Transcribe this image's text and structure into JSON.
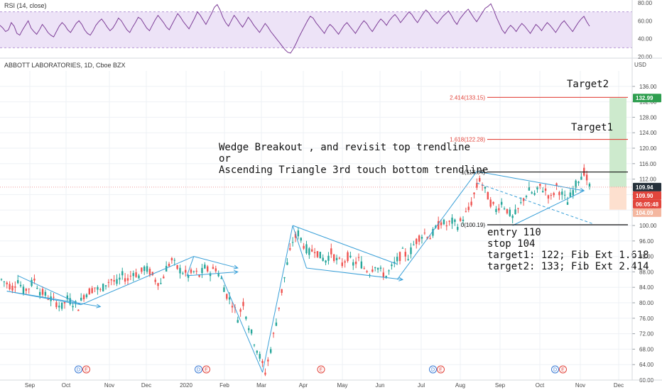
{
  "chart_data": [
    {
      "type": "line",
      "name": "rsi-panel",
      "title": "RSI (14, close)",
      "y_ticks": [
        "80.00",
        "60.00",
        "40.00",
        "20.00"
      ],
      "ylim": [
        20,
        80
      ],
      "band": [
        30,
        70
      ],
      "values": [
        55,
        52,
        48,
        50,
        58,
        54,
        46,
        44,
        50,
        55,
        60,
        52,
        48,
        45,
        50,
        56,
        52,
        47,
        44,
        42,
        48,
        54,
        58,
        55,
        50,
        47,
        52,
        57,
        60,
        56,
        50,
        46,
        44,
        49,
        55,
        59,
        62,
        58,
        53,
        49,
        52,
        57,
        63,
        60,
        55,
        50,
        47,
        53,
        58,
        64,
        62,
        57,
        52,
        49,
        55,
        61,
        66,
        62,
        58,
        53,
        50,
        56,
        62,
        68,
        64,
        59,
        55,
        51,
        57,
        63,
        70,
        66,
        61,
        56,
        62,
        68,
        75,
        78,
        72,
        64,
        58,
        54,
        60,
        66,
        62,
        57,
        53,
        58,
        64,
        60,
        55,
        51,
        47,
        52,
        57,
        53,
        48,
        44,
        40,
        36,
        32,
        28,
        25,
        24,
        29,
        35,
        42,
        48,
        54,
        60,
        65,
        63,
        58,
        54,
        50,
        46,
        52,
        56,
        53,
        49,
        45,
        50,
        55,
        58,
        54,
        50,
        46,
        51,
        56,
        60,
        57,
        52,
        48,
        53,
        58,
        62,
        59,
        55,
        60,
        64,
        67,
        63,
        58,
        62,
        66,
        70,
        67,
        62,
        58,
        63,
        68,
        72,
        69,
        64,
        60,
        57,
        61,
        65,
        68,
        71,
        66,
        60,
        56,
        62,
        66,
        70,
        73,
        68,
        63,
        59,
        64,
        69,
        74,
        76,
        79,
        72,
        64,
        57,
        50,
        46,
        51,
        55,
        52,
        48,
        53,
        57,
        54,
        50,
        46,
        51,
        56,
        53,
        49,
        54,
        58,
        55,
        51,
        47,
        52,
        57,
        60,
        56,
        52,
        48,
        53,
        58,
        62,
        65,
        59,
        54
      ]
    },
    {
      "type": "candlestick",
      "name": "price-panel",
      "title": "ABBOTT LABORATORIES, 1D, Cboe BZX",
      "currency": "USD",
      "ylim": [
        60,
        140
      ],
      "y_ticks": [
        "136.00",
        "132.00",
        "128.00",
        "124.00",
        "120.00",
        "116.00",
        "112.00",
        "108.00",
        "104.00",
        "100.00",
        "96.00",
        "92.00",
        "88.00",
        "84.00",
        "80.00",
        "76.00",
        "72.00",
        "68.00",
        "64.00",
        "60.00"
      ],
      "x_labels": [
        "Sep",
        "Oct",
        "Nov",
        "Dec",
        "2020",
        "Feb",
        "Mar",
        "Apr",
        "May",
        "Jun",
        "Jul",
        "Aug",
        "Sep",
        "Oct",
        "Nov",
        "Dec"
      ],
      "close_path": [
        {
          "x": 0,
          "y": 86
        },
        {
          "x": 4,
          "y": 85
        },
        {
          "x": 8,
          "y": 84
        },
        {
          "x": 12,
          "y": 86
        },
        {
          "x": 16,
          "y": 83
        },
        {
          "x": 20,
          "y": 84
        },
        {
          "x": 24,
          "y": 86
        },
        {
          "x": 28,
          "y": 83
        },
        {
          "x": 32,
          "y": 82
        },
        {
          "x": 36,
          "y": 81
        },
        {
          "x": 40,
          "y": 80
        },
        {
          "x": 44,
          "y": 79
        },
        {
          "x": 48,
          "y": 81
        },
        {
          "x": 52,
          "y": 80
        },
        {
          "x": 56,
          "y": 79
        },
        {
          "x": 60,
          "y": 82
        },
        {
          "x": 64,
          "y": 83
        },
        {
          "x": 68,
          "y": 84
        },
        {
          "x": 72,
          "y": 83
        },
        {
          "x": 76,
          "y": 85
        },
        {
          "x": 80,
          "y": 86
        },
        {
          "x": 84,
          "y": 85
        },
        {
          "x": 88,
          "y": 87
        },
        {
          "x": 92,
          "y": 86
        },
        {
          "x": 96,
          "y": 88
        },
        {
          "x": 100,
          "y": 87
        },
        {
          "x": 104,
          "y": 89
        },
        {
          "x": 108,
          "y": 88
        },
        {
          "x": 112,
          "y": 86
        },
        {
          "x": 116,
          "y": 85
        },
        {
          "x": 120,
          "y": 89
        },
        {
          "x": 124,
          "y": 91
        },
        {
          "x": 128,
          "y": 89
        },
        {
          "x": 132,
          "y": 88
        },
        {
          "x": 136,
          "y": 87
        },
        {
          "x": 140,
          "y": 88
        },
        {
          "x": 144,
          "y": 87
        },
        {
          "x": 148,
          "y": 89
        },
        {
          "x": 152,
          "y": 88
        },
        {
          "x": 156,
          "y": 89
        },
        {
          "x": 160,
          "y": 86
        },
        {
          "x": 164,
          "y": 82
        },
        {
          "x": 168,
          "y": 80
        },
        {
          "x": 172,
          "y": 76
        },
        {
          "x": 176,
          "y": 80
        },
        {
          "x": 180,
          "y": 74
        },
        {
          "x": 184,
          "y": 70
        },
        {
          "x": 188,
          "y": 66
        },
        {
          "x": 192,
          "y": 62
        },
        {
          "x": 196,
          "y": 68
        },
        {
          "x": 200,
          "y": 75
        },
        {
          "x": 204,
          "y": 83
        },
        {
          "x": 208,
          "y": 90
        },
        {
          "x": 212,
          "y": 96
        },
        {
          "x": 216,
          "y": 98
        },
        {
          "x": 220,
          "y": 95
        },
        {
          "x": 224,
          "y": 93
        },
        {
          "x": 228,
          "y": 94
        },
        {
          "x": 232,
          "y": 92
        },
        {
          "x": 236,
          "y": 91
        },
        {
          "x": 240,
          "y": 93
        },
        {
          "x": 244,
          "y": 91
        },
        {
          "x": 248,
          "y": 90
        },
        {
          "x": 252,
          "y": 92
        },
        {
          "x": 256,
          "y": 90
        },
        {
          "x": 260,
          "y": 91
        },
        {
          "x": 264,
          "y": 89
        },
        {
          "x": 268,
          "y": 88
        },
        {
          "x": 272,
          "y": 90
        },
        {
          "x": 276,
          "y": 88
        },
        {
          "x": 280,
          "y": 87
        },
        {
          "x": 284,
          "y": 89
        },
        {
          "x": 288,
          "y": 91
        },
        {
          "x": 292,
          "y": 93
        },
        {
          "x": 296,
          "y": 92
        },
        {
          "x": 300,
          "y": 95
        },
        {
          "x": 304,
          "y": 97
        },
        {
          "x": 308,
          "y": 98
        },
        {
          "x": 312,
          "y": 97
        },
        {
          "x": 316,
          "y": 99
        },
        {
          "x": 320,
          "y": 101
        },
        {
          "x": 324,
          "y": 100
        },
        {
          "x": 328,
          "y": 101
        },
        {
          "x": 332,
          "y": 100
        },
        {
          "x": 336,
          "y": 102
        },
        {
          "x": 340,
          "y": 104
        },
        {
          "x": 344,
          "y": 108
        },
        {
          "x": 348,
          "y": 112
        },
        {
          "x": 352,
          "y": 109
        },
        {
          "x": 356,
          "y": 106
        },
        {
          "x": 360,
          "y": 104
        },
        {
          "x": 364,
          "y": 106
        },
        {
          "x": 368,
          "y": 104
        },
        {
          "x": 372,
          "y": 102
        },
        {
          "x": 376,
          "y": 104
        },
        {
          "x": 380,
          "y": 107
        },
        {
          "x": 384,
          "y": 109
        },
        {
          "x": 388,
          "y": 108
        },
        {
          "x": 392,
          "y": 110
        },
        {
          "x": 396,
          "y": 109
        },
        {
          "x": 400,
          "y": 107
        },
        {
          "x": 404,
          "y": 110
        },
        {
          "x": 408,
          "y": 108
        },
        {
          "x": 412,
          "y": 106
        },
        {
          "x": 416,
          "y": 109
        },
        {
          "x": 420,
          "y": 112
        },
        {
          "x": 424,
          "y": 114
        },
        {
          "x": 428,
          "y": 110
        }
      ],
      "fib_levels": [
        {
          "label": "2.414(133.15)",
          "value": 133.15
        },
        {
          "label": "1.618(122.28)",
          "value": 122.28
        },
        {
          "label": "1(113.84)",
          "value": 113.84
        },
        {
          "label": "0(100.19)",
          "value": 100.19
        }
      ],
      "price_tags": [
        {
          "label": "132.99",
          "value": 132.99,
          "color": "#2e9e4f"
        },
        {
          "label": "109.94",
          "value": 109.94,
          "color": "#26313b"
        },
        {
          "label": "109.90",
          "value": 109.9,
          "color": "#e2453c"
        },
        {
          "label": "06:05:48",
          "value": 108.4,
          "color": "#e2453c"
        },
        {
          "label": "104.09",
          "value": 104.09,
          "color": "#f4b7a0"
        }
      ],
      "annotations": {
        "target2": "Target2",
        "target1": "Target1",
        "pattern_line1": "Wedge Breakout , and revisit top trendline",
        "pattern_line2": "or",
        "pattern_line3": "Ascending Triangle 3rd touch bottom trendline",
        "trade_entry": "entry 110",
        "trade_stop": "stop 104",
        "trade_t1": "target1: 122; Fib Ext 1.618",
        "trade_t2": "target2: 133; Fib Ext 2.414"
      },
      "events": [
        {
          "month": "Oct",
          "marks": [
            "D",
            "E"
          ]
        },
        {
          "month": "2020",
          "marks": [
            "D",
            "E"
          ]
        },
        {
          "month": "Apr",
          "marks": [
            "E"
          ]
        },
        {
          "month": "Jul",
          "marks": [
            "D",
            "E"
          ]
        },
        {
          "month": "Oct",
          "marks": [
            "D",
            "E"
          ]
        }
      ]
    }
  ],
  "colors": {
    "up": "#26a69a",
    "down": "#ef5350",
    "rsi_line": "#7e3f98",
    "rsi_band": "#ede3f7",
    "trend": "#3aa0d8",
    "fib": "#e2453c",
    "grid": "#eef1f5",
    "profit_zone": "#cdeacd",
    "loss_zone": "#fde0cf"
  }
}
